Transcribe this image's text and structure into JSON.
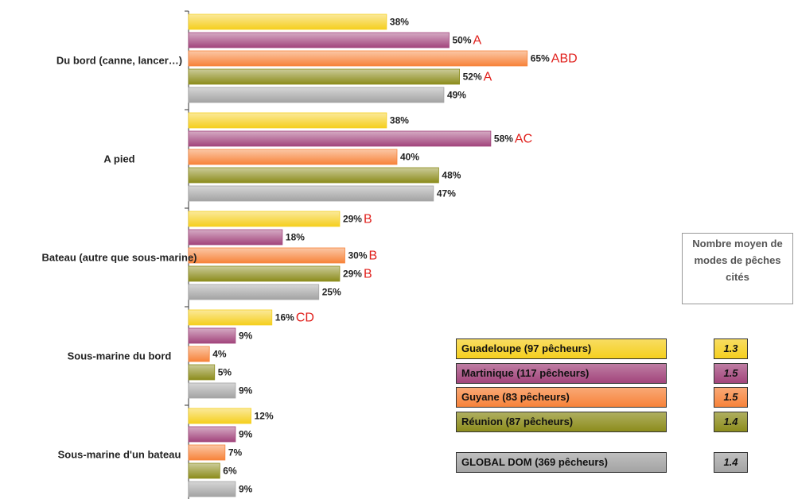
{
  "chart_data": {
    "type": "bar",
    "orientation": "horizontal",
    "categories": [
      "Du bord (canne, lancer…)",
      "A pied",
      "Bateau (autre que sous-marine)",
      "Sous-marine du bord",
      "Sous-marine d'un bateau"
    ],
    "xlim": [
      0,
      100
    ],
    "series": [
      {
        "name": "Guadeloupe (97 pêcheurs)",
        "color": "#f5cf1e",
        "values": [
          38,
          38,
          29,
          16,
          12
        ],
        "value_labels": [
          "38%",
          "38%",
          "29%",
          "16%",
          "12%"
        ],
        "annotations": [
          null,
          null,
          "B",
          "CD",
          null
        ],
        "average": 1.3
      },
      {
        "name": "Martinique (117 pêcheurs)",
        "color": "#a2457c",
        "values": [
          50,
          58,
          18,
          9,
          9
        ],
        "value_labels": [
          "50%",
          "58%",
          "18%",
          "9%",
          "9%"
        ],
        "annotations": [
          "A",
          "AC",
          null,
          null,
          null
        ],
        "average": 1.5
      },
      {
        "name": "Guyane (83 pêcheurs)",
        "color": "#f7833a",
        "values": [
          65,
          40,
          30,
          4,
          7
        ],
        "value_labels": [
          "65%",
          "40%",
          "30%",
          "4%",
          "7%"
        ],
        "annotations": [
          "ABD",
          null,
          "B",
          null,
          null
        ],
        "average": 1.5
      },
      {
        "name": "Réunion (87 pêcheurs)",
        "color": "#8c8c1c",
        "values": [
          52,
          48,
          29,
          5,
          6
        ],
        "value_labels": [
          "52%",
          "48%",
          "29%",
          "5%",
          "6%"
        ],
        "annotations": [
          "A",
          null,
          "B",
          null,
          null
        ],
        "average": 1.4
      },
      {
        "name": "GLOBAL DOM (369 pêcheurs)",
        "color": "#a3a3a3",
        "values": [
          49,
          47,
          25,
          9,
          9
        ],
        "value_labels": [
          "49%",
          "47%",
          "25%",
          "9%",
          "9%"
        ],
        "annotations": [
          null,
          null,
          null,
          null,
          null
        ],
        "average": 1.4
      }
    ],
    "legend_header": "Nombre moyen de modes de pêches cités"
  }
}
